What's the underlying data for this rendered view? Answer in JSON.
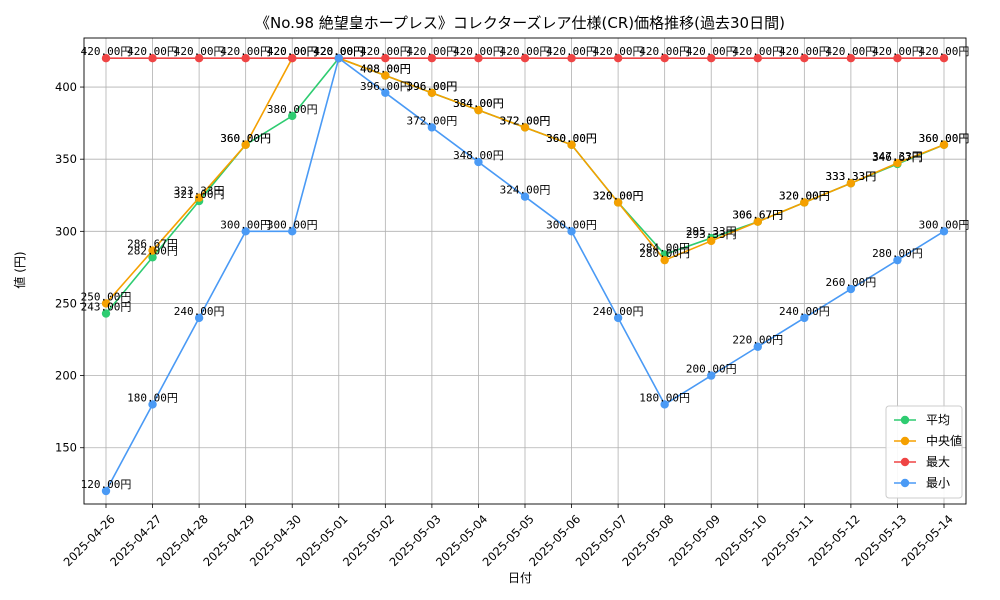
{
  "chart_data": {
    "type": "line",
    "title": "《No.98 絶望皇ホープレス》コレクターズレア仕様(CR)価格推移(過去30日間)",
    "xlabel": "日付",
    "ylabel": "値 (円)",
    "categories": [
      "2025-04-26",
      "2025-04-27",
      "2025-04-28",
      "2025-04-29",
      "2025-04-30",
      "2025-05-01",
      "2025-05-02",
      "2025-05-03",
      "2025-05-04",
      "2025-05-05",
      "2025-05-06",
      "2025-05-07",
      "2025-05-08",
      "2025-05-09",
      "2025-05-10",
      "2025-05-11",
      "2025-05-12",
      "2025-05-13",
      "2025-05-14"
    ],
    "ylim": [
      111,
      434
    ],
    "yticks": [
      150,
      200,
      250,
      300,
      350,
      400
    ],
    "grid": true,
    "legend_position": "bottom-right",
    "value_suffix": "円",
    "series": [
      {
        "name": "平均",
        "color": "#2ecc71",
        "values": [
          243.0,
          282.0,
          321.0,
          360.0,
          380.0,
          420.0,
          408.0,
          396.0,
          384.0,
          372.0,
          360.0,
          320.0,
          284.0,
          295.33,
          306.67,
          320.0,
          333.33,
          346.67,
          360.0
        ]
      },
      {
        "name": "中央値",
        "color": "#f5a000",
        "values": [
          250.0,
          286.67,
          323.33,
          360.0,
          420.0,
          420.0,
          408.0,
          396.0,
          384.0,
          372.0,
          360.0,
          320.0,
          280.0,
          293.33,
          306.67,
          320.0,
          333.33,
          347.33,
          360.0
        ]
      },
      {
        "name": "最大",
        "color": "#ef4444",
        "values": [
          420.0,
          420.0,
          420.0,
          420.0,
          420.0,
          420.0,
          420.0,
          420.0,
          420.0,
          420.0,
          420.0,
          420.0,
          420.0,
          420.0,
          420.0,
          420.0,
          420.0,
          420.0,
          420.0
        ]
      },
      {
        "name": "最小",
        "color": "#4a9af5",
        "values": [
          120.0,
          180.0,
          240.0,
          300.0,
          300.0,
          420.0,
          396.0,
          372.0,
          348.0,
          324.0,
          300.0,
          240.0,
          180.0,
          200.0,
          220.0,
          240.0,
          260.0,
          280.0,
          300.0
        ]
      }
    ]
  }
}
